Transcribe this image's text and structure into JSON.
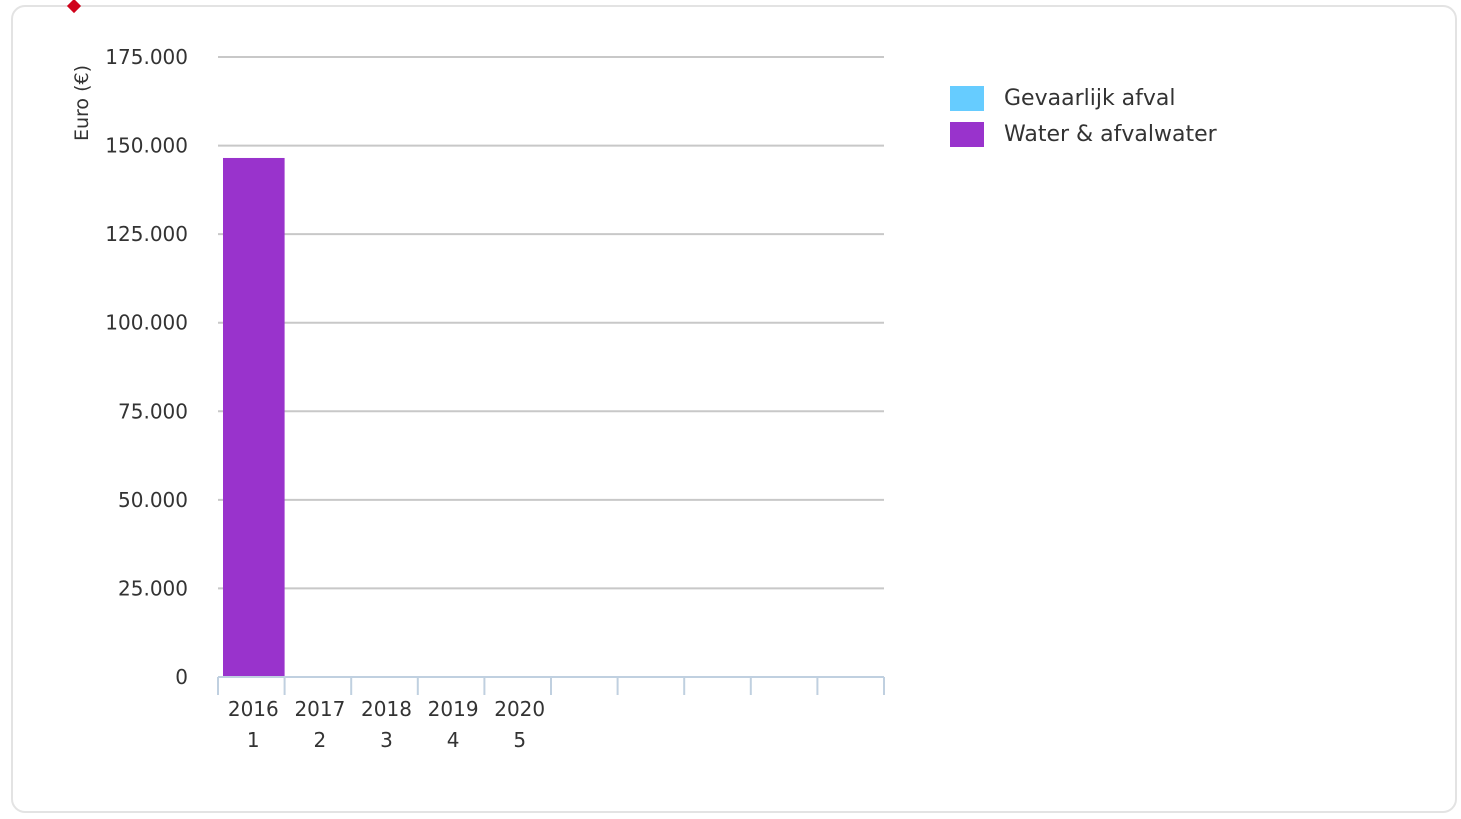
{
  "chart_data": {
    "type": "bar",
    "categories": [
      "2016",
      "2017",
      "2018",
      "2019",
      "2020",
      "",
      "",
      "",
      "",
      ""
    ],
    "sublabels": [
      "1",
      "2",
      "3",
      "4",
      "5",
      "",
      "",
      "",
      "",
      ""
    ],
    "series": [
      {
        "name": "Gevaarlijk afval",
        "color": "#66ccff",
        "values": [
          0,
          0,
          0,
          0,
          0,
          0,
          0,
          0,
          0,
          0
        ]
      },
      {
        "name": "Water & afvalwater",
        "color": "#9933cc",
        "values": [
          146500,
          0,
          0,
          0,
          0,
          0,
          0,
          0,
          0,
          0
        ]
      }
    ],
    "ylabel": "Euro (€)",
    "ylim": [
      0,
      175000
    ],
    "yticks": [
      0,
      25000,
      50000,
      75000,
      100000,
      125000,
      150000,
      175000
    ],
    "ytick_labels": [
      "0",
      "25.000",
      "50.000",
      "75.000",
      "100.000",
      "125.000",
      "150.000",
      "175.000"
    ],
    "grid": true,
    "legend_position": "right",
    "stacked": true
  },
  "legend": [
    {
      "label": "Gevaarlijk afval",
      "color": "#66ccff"
    },
    {
      "label": "Water & afvalwater",
      "color": "#9933cc"
    }
  ]
}
